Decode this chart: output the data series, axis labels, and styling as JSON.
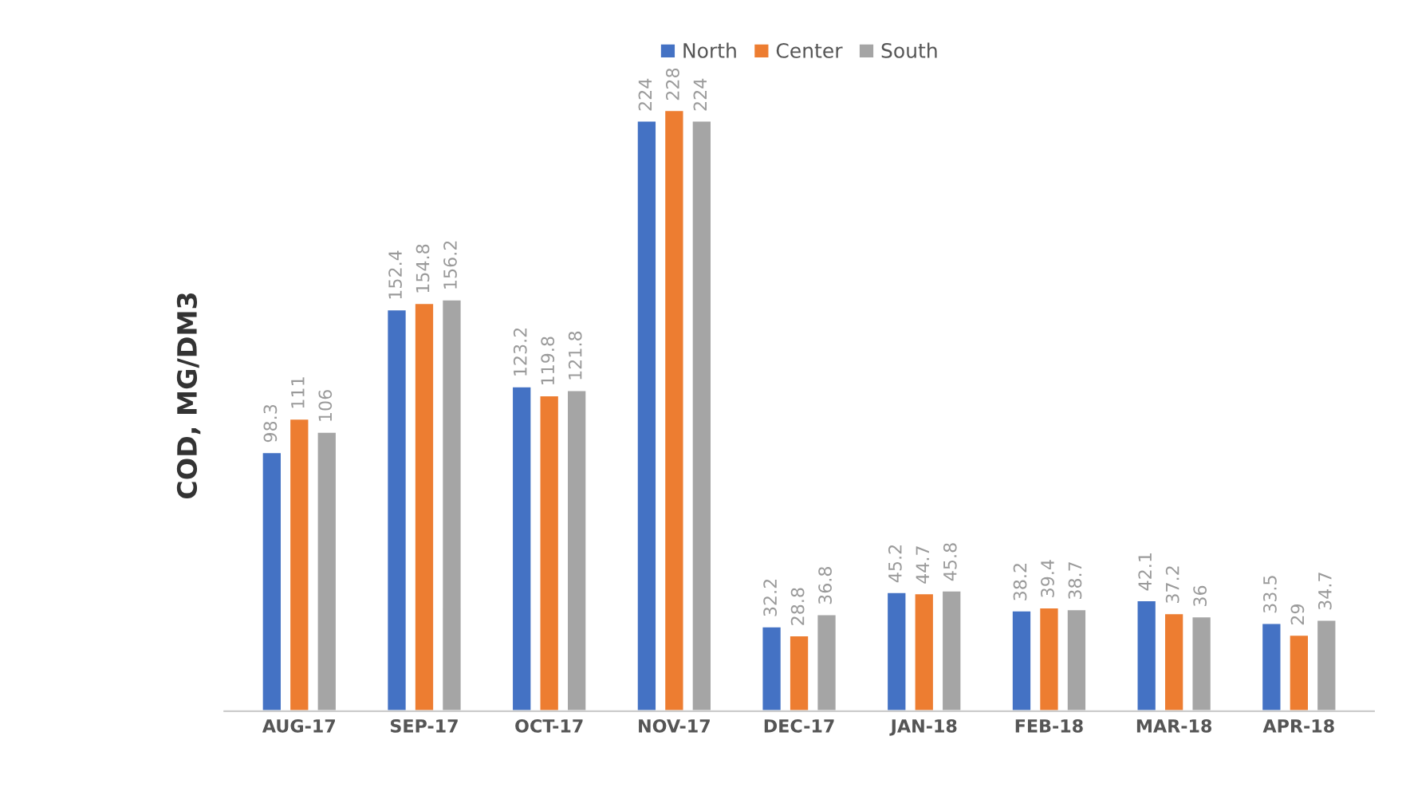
{
  "chart_data": {
    "type": "bar",
    "ylabel": "COD, MG/DM3",
    "categories": [
      "AUG-17",
      "SEP-17",
      "OCT-17",
      "NOV-17",
      "DEC-17",
      "JAN-18",
      "FEB-18",
      "MAR-18",
      "APR-18"
    ],
    "series": [
      {
        "name": "North",
        "color": "#4472c4",
        "values": [
          98.3,
          152.4,
          123.2,
          224,
          32.2,
          45.2,
          38.2,
          42.1,
          33.5
        ]
      },
      {
        "name": "Center",
        "color": "#ed7d31",
        "values": [
          111,
          154.8,
          119.8,
          228,
          28.8,
          44.7,
          39.4,
          37.2,
          29
        ]
      },
      {
        "name": "South",
        "color": "#a5a5a5",
        "values": [
          106,
          156.2,
          121.8,
          224,
          36.8,
          45.8,
          38.7,
          36,
          34.7
        ]
      }
    ],
    "data_labels": true,
    "legend": "top",
    "grid": false,
    "tick_labels": "x"
  }
}
